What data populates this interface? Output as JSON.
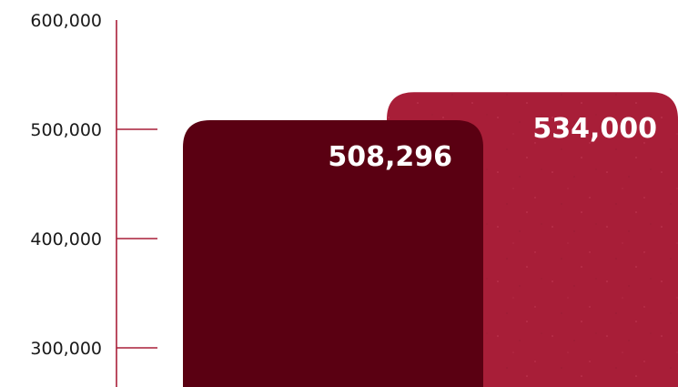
{
  "chart_data": {
    "type": "bar",
    "categories": [
      "",
      ""
    ],
    "values": [
      508296,
      534000
    ],
    "value_labels": [
      "508,296",
      "534,000"
    ],
    "colors": [
      "#5a0012",
      "#a81e38"
    ],
    "axis_color": "#a81e38",
    "ylim": [
      270000,
      600000
    ],
    "yticks": [
      300000,
      400000,
      500000,
      600000
    ],
    "ytick_labels": [
      "300,000",
      "400,000",
      "500,000",
      "600,000"
    ],
    "grid": false,
    "legend": "none"
  }
}
